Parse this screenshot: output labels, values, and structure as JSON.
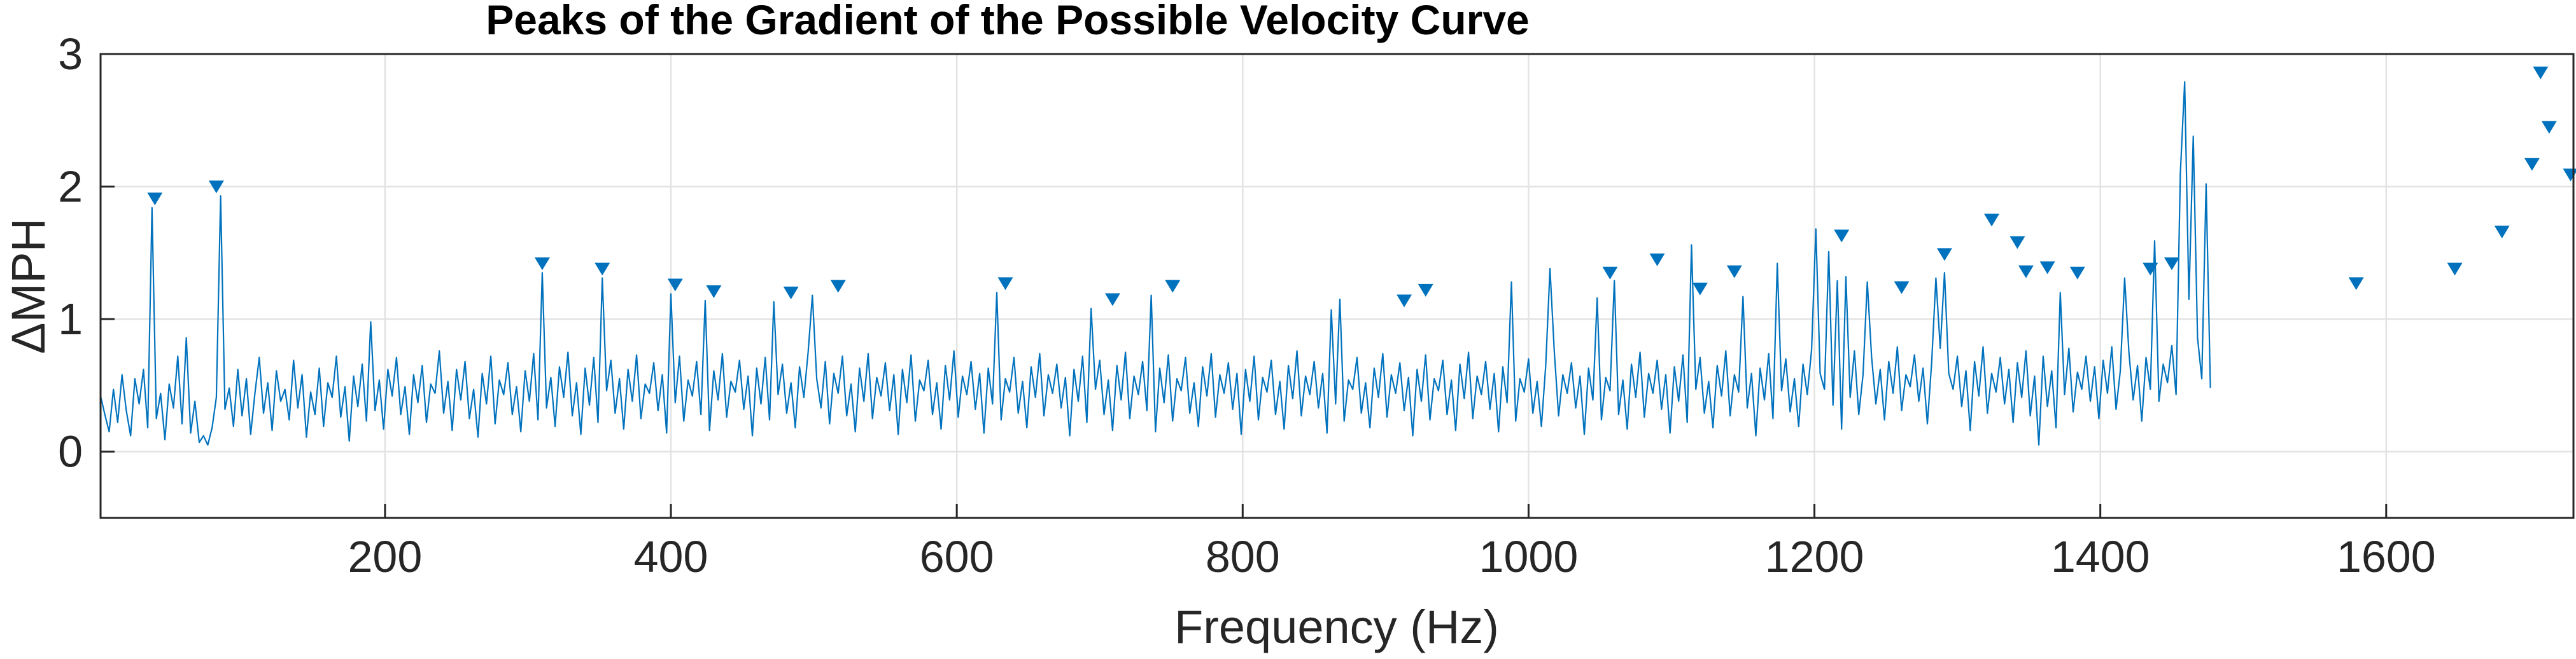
{
  "chart_data": {
    "type": "line",
    "title": "Peaks of the Gradient of the Possible Velocity Curve",
    "xlabel": "Frequency (Hz)",
    "ylabel": "ΔMPH",
    "xlim": [
      1,
      1731
    ],
    "ylim": [
      -0.5,
      3
    ],
    "xticks": [
      200,
      400,
      600,
      800,
      1000,
      1200,
      1400,
      1600
    ],
    "yticks": [
      0,
      1,
      2,
      3
    ],
    "grid": true,
    "line_color": "#0072BD",
    "marker_color": "#0072BD",
    "series": [
      {
        "values_note": "",
        "x_start": 1,
        "x_step": 3,
        "values": [
          0.42,
          0.28,
          0.15,
          0.47,
          0.22,
          0.58,
          0.31,
          0.12,
          0.55,
          0.36,
          0.62,
          0.18,
          1.84,
          0.25,
          0.44,
          0.09,
          0.51,
          0.33,
          0.72,
          0.21,
          0.86,
          0.14,
          0.38,
          0.07,
          0.12,
          0.05,
          0.18,
          0.41,
          1.93,
          0.32,
          0.48,
          0.19,
          0.62,
          0.27,
          0.55,
          0.13,
          0.44,
          0.71,
          0.29,
          0.52,
          0.16,
          0.61,
          0.38,
          0.47,
          0.24,
          0.69,
          0.33,
          0.58,
          0.11,
          0.45,
          0.28,
          0.63,
          0.19,
          0.52,
          0.41,
          0.72,
          0.26,
          0.49,
          0.08,
          0.57,
          0.34,
          0.66,
          0.23,
          0.98,
          0.31,
          0.54,
          0.17,
          0.62,
          0.42,
          0.71,
          0.28,
          0.49,
          0.13,
          0.58,
          0.37,
          0.65,
          0.22,
          0.51,
          0.44,
          0.76,
          0.29,
          0.53,
          0.16,
          0.62,
          0.39,
          0.68,
          0.25,
          0.47,
          0.11,
          0.59,
          0.36,
          0.72,
          0.21,
          0.54,
          0.43,
          0.67,
          0.28,
          0.49,
          0.15,
          0.61,
          0.38,
          0.74,
          0.24,
          1.35,
          0.33,
          0.56,
          0.19,
          0.64,
          0.41,
          0.75,
          0.27,
          0.52,
          0.13,
          0.63,
          0.35,
          0.71,
          0.22,
          1.31,
          0.46,
          0.69,
          0.29,
          0.55,
          0.17,
          0.62,
          0.38,
          0.73,
          0.25,
          0.51,
          0.44,
          0.67,
          0.31,
          0.58,
          0.14,
          1.19,
          0.37,
          0.72,
          0.23,
          0.54,
          0.42,
          0.68,
          0.28,
          1.14,
          0.16,
          0.61,
          0.39,
          0.74,
          0.26,
          0.53,
          0.45,
          0.69,
          0.32,
          0.57,
          0.12,
          0.63,
          0.36,
          0.71,
          0.24,
          1.13,
          0.43,
          0.66,
          0.29,
          0.52,
          0.18,
          0.64,
          0.41,
          0.75,
          1.18,
          0.55,
          0.33,
          0.68,
          0.21,
          0.59,
          0.44,
          0.72,
          0.27,
          0.51,
          0.15,
          0.63,
          0.38,
          0.74,
          0.25,
          0.56,
          0.42,
          0.67,
          0.31,
          0.58,
          0.13,
          0.62,
          0.37,
          0.73,
          0.23,
          0.54,
          0.46,
          0.69,
          0.28,
          0.52,
          0.17,
          0.65,
          0.39,
          0.76,
          0.26,
          0.57,
          0.43,
          0.68,
          0.32,
          0.59,
          0.14,
          0.63,
          0.36,
          1.2,
          0.24,
          0.55,
          0.45,
          0.71,
          0.29,
          0.53,
          0.18,
          0.64,
          0.41,
          0.74,
          0.27,
          0.58,
          0.44,
          0.66,
          0.33,
          0.56,
          0.12,
          0.62,
          0.38,
          0.72,
          0.22,
          1.08,
          0.47,
          0.69,
          0.28,
          0.54,
          0.16,
          0.65,
          0.39,
          0.75,
          0.25,
          0.57,
          0.43,
          0.68,
          0.31,
          1.18,
          0.15,
          0.63,
          0.37,
          0.73,
          0.23,
          0.55,
          0.46,
          0.71,
          0.29,
          0.52,
          0.19,
          0.64,
          0.42,
          0.74,
          0.26,
          0.58,
          0.44,
          0.67,
          0.32,
          0.59,
          0.13,
          0.62,
          0.38,
          0.72,
          0.24,
          0.56,
          0.45,
          0.69,
          0.28,
          0.53,
          0.17,
          0.65,
          0.4,
          0.76,
          0.27,
          0.57,
          0.43,
          0.68,
          0.33,
          0.59,
          0.14,
          1.07,
          0.36,
          1.15,
          0.23,
          0.54,
          0.47,
          0.71,
          0.29,
          0.52,
          0.18,
          0.63,
          0.41,
          0.74,
          0.26,
          0.58,
          0.44,
          0.67,
          0.31,
          0.56,
          0.12,
          0.62,
          0.38,
          0.73,
          0.24,
          0.55,
          0.46,
          0.69,
          0.28,
          0.54,
          0.16,
          0.66,
          0.4,
          0.75,
          0.25,
          0.57,
          0.43,
          0.68,
          0.32,
          0.59,
          0.15,
          0.64,
          0.37,
          1.28,
          0.23,
          0.55,
          0.45,
          0.7,
          0.29,
          0.53,
          0.19,
          0.65,
          1.38,
          0.76,
          0.27,
          0.58,
          0.44,
          0.67,
          0.33,
          0.57,
          0.13,
          0.63,
          0.39,
          1.16,
          0.24,
          0.56,
          0.46,
          1.29,
          0.28,
          0.54,
          0.17,
          0.66,
          0.41,
          0.75,
          0.26,
          0.59,
          0.44,
          0.69,
          0.32,
          0.58,
          0.14,
          0.64,
          0.38,
          0.73,
          0.22,
          1.56,
          0.47,
          0.71,
          0.29,
          0.53,
          0.18,
          0.65,
          0.42,
          0.76,
          0.27,
          0.58,
          0.45,
          1.17,
          0.33,
          0.59,
          0.12,
          0.63,
          0.39,
          0.74,
          0.25,
          1.42,
          0.46,
          0.7,
          0.3,
          0.55,
          0.19,
          0.66,
          0.43,
          0.77,
          1.68,
          0.59,
          0.47,
          1.51,
          0.35,
          1.29,
          0.17,
          1.32,
          0.41,
          0.76,
          0.28,
          0.58,
          1.28,
          0.71,
          0.36,
          0.62,
          0.24,
          0.68,
          0.44,
          0.79,
          0.31,
          0.58,
          0.49,
          0.73,
          0.38,
          0.63,
          0.21,
          0.67,
          1.31,
          0.78,
          1.35,
          0.59,
          0.47,
          0.72,
          0.34,
          0.61,
          0.16,
          0.68,
          0.42,
          0.79,
          0.29,
          0.59,
          0.45,
          0.71,
          0.36,
          0.62,
          0.22,
          0.67,
          0.41,
          0.76,
          0.27,
          0.57,
          0.05,
          0.72,
          0.34,
          0.61,
          0.18,
          1.2,
          0.43,
          0.78,
          0.3,
          0.6,
          0.47,
          0.72,
          0.38,
          0.64,
          0.25,
          0.69,
          0.44,
          0.79,
          0.32,
          0.61,
          1.31,
          0.75,
          0.39,
          0.65,
          0.23,
          0.71,
          0.47,
          1.59,
          0.38,
          0.66,
          0.52,
          0.8,
          0.43,
          2.1,
          2.79,
          1.15,
          2.38,
          0.86,
          0.55,
          2.02,
          0.48
        ]
      }
    ],
    "peaks": [
      {
        "x": 39,
        "y": 1.84
      },
      {
        "x": 82,
        "y": 1.93
      },
      {
        "x": 310,
        "y": 1.35
      },
      {
        "x": 352,
        "y": 1.31
      },
      {
        "x": 403,
        "y": 1.19
      },
      {
        "x": 430,
        "y": 1.14
      },
      {
        "x": 484,
        "y": 1.13
      },
      {
        "x": 517,
        "y": 1.18
      },
      {
        "x": 634,
        "y": 1.2
      },
      {
        "x": 709,
        "y": 1.08
      },
      {
        "x": 751,
        "y": 1.18
      },
      {
        "x": 913,
        "y": 1.07
      },
      {
        "x": 928,
        "y": 1.15
      },
      {
        "x": 1057,
        "y": 1.28
      },
      {
        "x": 1090,
        "y": 1.38
      },
      {
        "x": 1120,
        "y": 1.16
      },
      {
        "x": 1144,
        "y": 1.29
      },
      {
        "x": 1219,
        "y": 1.56
      },
      {
        "x": 1261,
        "y": 1.17
      },
      {
        "x": 1291,
        "y": 1.42
      },
      {
        "x": 1324,
        "y": 1.68
      },
      {
        "x": 1342,
        "y": 1.51
      },
      {
        "x": 1348,
        "y": 1.29
      },
      {
        "x": 1363,
        "y": 1.32
      },
      {
        "x": 1384,
        "y": 1.28
      },
      {
        "x": 1435,
        "y": 1.31
      },
      {
        "x": 1450,
        "y": 1.35
      },
      {
        "x": 1579,
        "y": 1.2
      },
      {
        "x": 1648,
        "y": 1.31
      },
      {
        "x": 1681,
        "y": 1.59
      },
      {
        "x": 1702,
        "y": 2.1
      },
      {
        "x": 1708,
        "y": 2.79
      },
      {
        "x": 1714,
        "y": 2.38
      },
      {
        "x": 1729,
        "y": 2.02
      }
    ]
  }
}
